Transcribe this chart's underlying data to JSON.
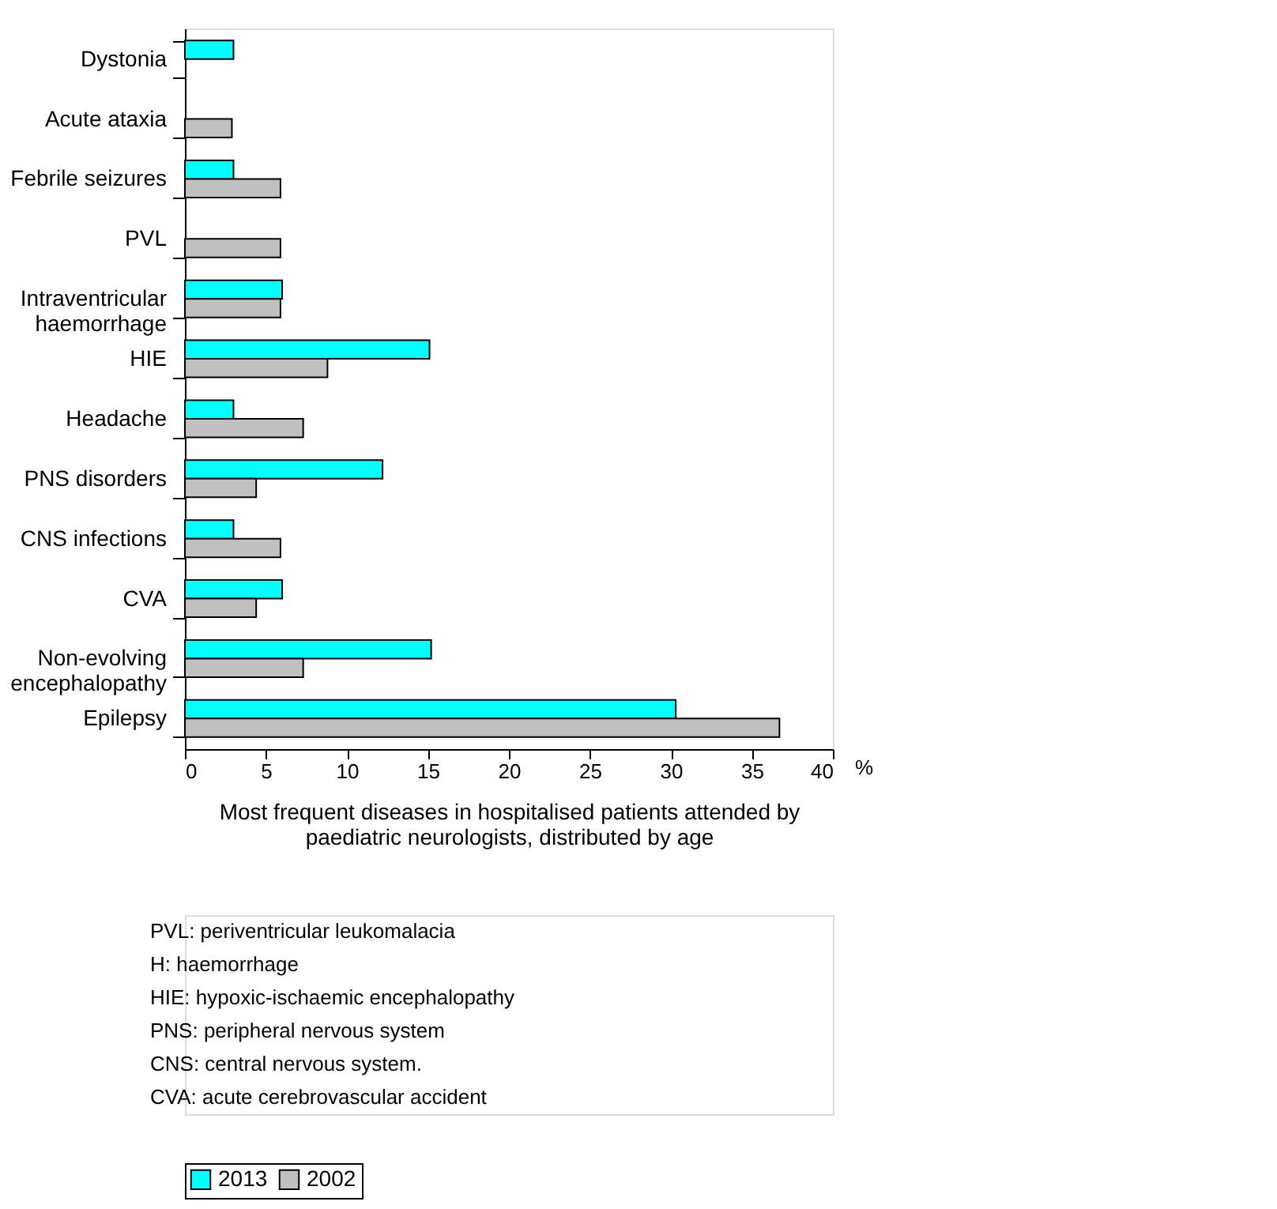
{
  "chart_data": {
    "type": "bar",
    "orientation": "horizontal",
    "categories": [
      "Dystonia",
      "Acute ataxia",
      "Febrile seizures",
      "PVL",
      "Intraventricular haemorrhage",
      "HIE",
      "Headache",
      "PNS disorders",
      "CNS infections",
      "CVA",
      "Non-evolving encephalopathy",
      "Epilepsy"
    ],
    "series": [
      {
        "name": "2013",
        "color": "#00ffff",
        "values": [
          3.0,
          null,
          3.0,
          null,
          6.0,
          15.1,
          3.0,
          12.2,
          3.0,
          6.0,
          15.2,
          30.3
        ]
      },
      {
        "name": "2002",
        "color": "#c0c0c0",
        "values": [
          null,
          2.9,
          5.9,
          5.9,
          5.9,
          8.8,
          7.3,
          4.4,
          5.9,
          4.4,
          7.3,
          36.7
        ]
      }
    ],
    "xlim": [
      0,
      40
    ],
    "xticks": [
      0,
      5,
      10,
      15,
      20,
      25,
      30,
      35,
      40
    ],
    "xlabel": "Most frequent diseases in hospitalised patients attended by paediatric neurologists, distributed by age",
    "legend": "bottom",
    "grid": false,
    "annotations": [
      "%",
      "PVL: periventricular leukomalacia",
      "H: haemorrhage",
      "HIE: hypoxic-ischaemic encephalopathy",
      "PNS: peripheral nervous system",
      "CNS: central nervous system.",
      "CVA: acute cerebrovascular accident"
    ]
  }
}
